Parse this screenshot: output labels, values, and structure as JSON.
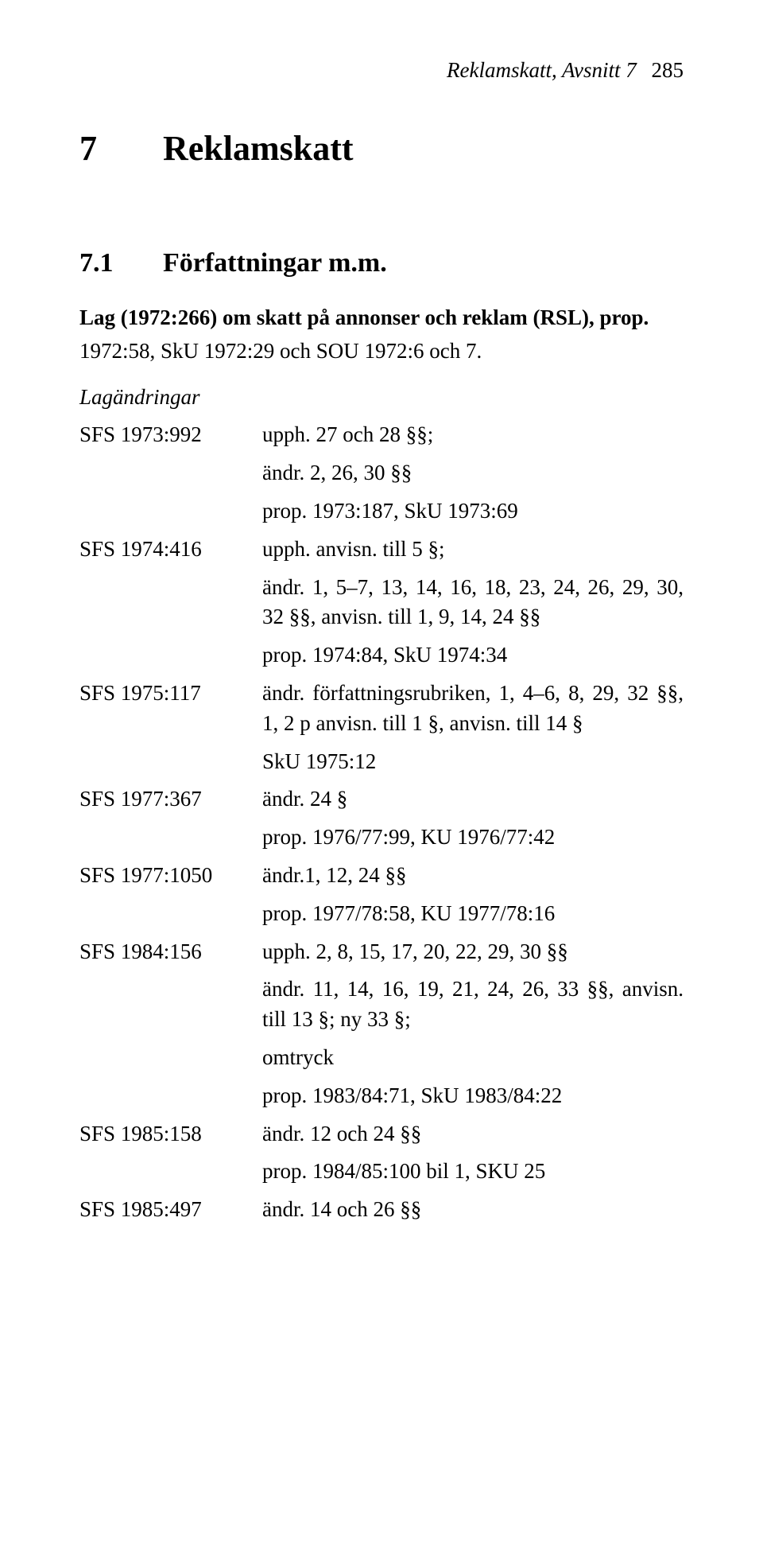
{
  "header": {
    "running": "Reklamskatt, Avsnitt 7",
    "page": "285"
  },
  "chapter": {
    "number": "7",
    "title": "Reklamskatt"
  },
  "section": {
    "number": "7.1",
    "title": "Författningar m.m."
  },
  "law": {
    "title": "Lag (1972:266) om skatt på annonser och reklam (RSL), prop.",
    "sub": "1972:58, SkU 1972:29 och SOU 1972:6 och 7."
  },
  "subhead": "Lagändringar",
  "rows": [
    {
      "sfs": "SFS 1973:992",
      "lines": [
        "upph. 27 och 28 §§;",
        "ändr. 2, 26, 30 §§",
        "prop. 1973:187, SkU 1973:69"
      ]
    },
    {
      "sfs": "SFS 1974:416",
      "lines": [
        "upph. anvisn. till 5 §;",
        "ändr. 1, 5–7, 13, 14, 16, 18, 23, 24, 26, 29, 30, 32 §§, anvisn. till 1, 9, 14, 24 §§",
        "prop. 1974:84, SkU 1974:34"
      ]
    },
    {
      "sfs": "SFS 1975:117",
      "lines": [
        "ändr. författningsrubriken, 1, 4–6, 8, 29, 32 §§, 1, 2 p anvisn. till 1 §, anvisn. till 14 §",
        "SkU 1975:12"
      ]
    },
    {
      "sfs": "SFS 1977:367",
      "lines": [
        "ändr. 24 §",
        "prop. 1976/77:99, KU 1976/77:42"
      ]
    },
    {
      "sfs": "SFS 1977:1050",
      "lines": [
        "ändr.1, 12, 24 §§",
        "prop. 1977/78:58, KU 1977/78:16"
      ]
    },
    {
      "sfs": "SFS 1984:156",
      "lines": [
        "upph. 2, 8, 15, 17, 20, 22, 29, 30 §§",
        "ändr. 11, 14, 16, 19, 21, 24, 26, 33 §§, anvisn. till 13 §; ny 33 §;",
        "omtryck",
        "prop. 1983/84:71, SkU 1983/84:22"
      ]
    },
    {
      "sfs": "SFS 1985:158",
      "lines": [
        "ändr. 12 och 24 §§",
        "prop. 1984/85:100 bil 1, SKU 25"
      ]
    },
    {
      "sfs": "SFS 1985:497",
      "lines": [
        "ändr. 14 och 26 §§"
      ]
    }
  ]
}
